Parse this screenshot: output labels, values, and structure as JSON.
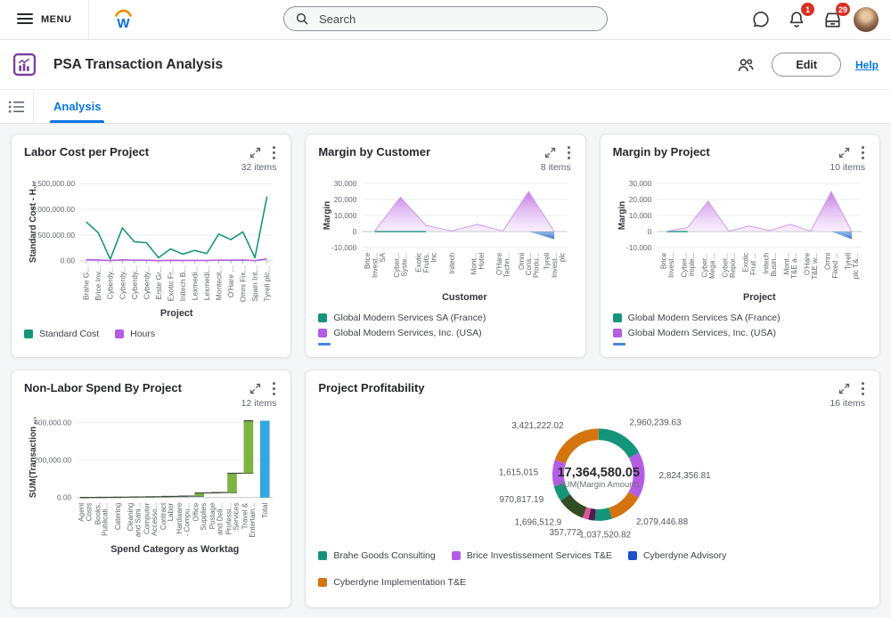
{
  "topbar": {
    "menu_label": "MENU",
    "logo_letter": "W",
    "search_placeholder": "Search",
    "notification_badge": "1",
    "inbox_badge": "29"
  },
  "header": {
    "title": "PSA Transaction Analysis",
    "edit_label": "Edit",
    "help_label": "Help"
  },
  "tabs": {
    "active": "Analysis"
  },
  "colors": {
    "accent_blue": "#0875e1",
    "badge_red": "#d93025",
    "teal": "#149579",
    "purple": "#b55ce5",
    "orange": "#d4740f",
    "dark_green": "#324d25",
    "dark_purple": "#4f1d4e",
    "pink": "#e8509e",
    "legend_blue": "#1c52c9",
    "waterfall_green": "#7cb342",
    "total_blue": "#33a7e0",
    "neg_blue": "#4b86d8"
  },
  "chart_data": [
    {
      "type": "line",
      "title": "Labor Cost per Project",
      "items_label": "32 items",
      "xlabel": "Project",
      "ylabel": "Standard Cost - H...",
      "ylim": [
        0,
        1500000
      ],
      "yticks": [
        {
          "v": 1500000,
          "label": "1,500,000.00"
        },
        {
          "v": 1000000,
          "label": "1,000,000.00"
        },
        {
          "v": 500000,
          "label": "500,000.00"
        },
        {
          "v": 0,
          "label": "0.00"
        }
      ],
      "categories": [
        "Brahe G...",
        "Brice Inv...",
        "Cyberdy...",
        "Cyberdy...",
        "Cyberdy...",
        "Cyberdy...",
        "Erste Gr...",
        "Exotic Fr...",
        "Initech B...",
        "Lexmedi...",
        "Lexmedi...",
        "Montecit...",
        "O'Hare ...",
        "Omni Fix...",
        "Spain Int...",
        "Tyrell plc..."
      ],
      "series": [
        {
          "name": "Standard Cost",
          "color": "#149579",
          "values": [
            755000,
            545000,
            30000,
            640000,
            370000,
            350000,
            60000,
            230000,
            130000,
            200000,
            140000,
            520000,
            410000,
            560000,
            60000,
            1250000
          ]
        },
        {
          "name": "Hours",
          "color": "#b55ce5",
          "values": [
            22000,
            15000,
            3000,
            18000,
            12000,
            10000,
            4000,
            8000,
            6000,
            7000,
            5000,
            14000,
            11000,
            15000,
            4000,
            35000
          ]
        }
      ]
    },
    {
      "type": "area",
      "title": "Margin by Customer",
      "items_label": "8 items",
      "xlabel": "Customer",
      "ylabel": "Margin",
      "ylim": [
        -10000,
        30000
      ],
      "yticks": [
        {
          "v": 30000,
          "label": "30,000"
        },
        {
          "v": 20000,
          "label": "20,000"
        },
        {
          "v": 10000,
          "label": "10,000"
        },
        {
          "v": 0,
          "label": "0"
        },
        {
          "v": -10000,
          "label": "-10,000"
        }
      ],
      "categories": [
        "Brice\nInvest...\nSA",
        "Cyber...\nSyste...",
        "Exotic\nFruits,\nInc",
        "Initech",
        "Mont...\nHotel",
        "O'Hare\nTechn...",
        "Omni\nCons...\nProdu...",
        "Tyrell\nInvest...\nplc"
      ],
      "series": [
        {
          "name": "Global Modern Services SA (France)",
          "color": "#149579",
          "kind": "zero-line",
          "span": 3
        },
        {
          "name": "Global Modern Services, Inc. (USA)",
          "color": "#b55ce5",
          "kind": "area",
          "values": [
            300,
            21500,
            3800,
            300,
            4500,
            300,
            25000,
            0
          ]
        },
        {
          "name": "",
          "color": "#4b86d8",
          "kind": "area-neg",
          "values": [
            0,
            0,
            0,
            0,
            0,
            0,
            0,
            -4800
          ]
        }
      ]
    },
    {
      "type": "area",
      "title": "Margin by Project",
      "items_label": "10 items",
      "xlabel": "Project",
      "ylabel": "Margin",
      "ylim": [
        -10000,
        30000
      ],
      "yticks": [
        {
          "v": 30000,
          "label": "30,000"
        },
        {
          "v": 20000,
          "label": "20,000"
        },
        {
          "v": 10000,
          "label": "10,000"
        },
        {
          "v": 0,
          "label": "0"
        },
        {
          "v": -10000,
          "label": "-10,000"
        }
      ],
      "categories": [
        "Brice\nInvest...",
        "Cyber...\nImple...",
        "Cyber...\nMega ...",
        "Cyber...\nRepor...",
        "Exotic\nFruit ...",
        "Initech\nBusin...",
        "Mont...\nT&E a...",
        "O'Hare\nT&E w...",
        "Omni\nFixed ...",
        "Tyrell\nplc T&..."
      ],
      "series": [
        {
          "name": "Global Modern Services SA (France)",
          "color": "#149579",
          "kind": "zero-line",
          "span": 2
        },
        {
          "name": "Global Modern Services, Inc. (USA)",
          "color": "#b55ce5",
          "kind": "area",
          "values": [
            200,
            2500,
            19000,
            200,
            3500,
            500,
            4500,
            200,
            25000,
            0
          ]
        },
        {
          "name": "",
          "color": "#4b86d8",
          "kind": "area-neg",
          "values": [
            0,
            0,
            0,
            0,
            0,
            0,
            0,
            0,
            0,
            -4800
          ]
        }
      ]
    },
    {
      "type": "waterfall",
      "title": "Non-Labor Spend By Project",
      "items_label": "12 items",
      "xlabel": "Spend Category as Worktag",
      "ylabel": "SUM(Transaction ...",
      "ylim": [
        0,
        430000
      ],
      "yticks": [
        {
          "v": 400000,
          "label": "400,000.00"
        },
        {
          "v": 200000,
          "label": "200,000.00"
        },
        {
          "v": 0,
          "label": "0.00"
        }
      ],
      "categories": [
        "Agent\nCosts",
        "Books,\nPublicati...",
        "Catering",
        "Cleaning\nand Sani...",
        "Computer\nAccesso...",
        "Contract\nLabor",
        "Hardware\n- Compu...",
        "Office\nSupplies",
        "Postage\nand Deli...",
        "Professi...\nServices",
        "Travel &\nEntertain...",
        "Total"
      ],
      "increments": [
        800,
        700,
        900,
        1000,
        1100,
        1500,
        2000,
        17000,
        2000,
        103000,
        280000
      ],
      "total": 410000,
      "bar_color": "#7cb342",
      "total_color": "#33a7e0"
    },
    {
      "type": "donut",
      "title": "Project Profitability",
      "items_label": "16 items",
      "center_value": "17,364,580.05",
      "center_label": "SUM(Margin Amount)",
      "segments": [
        {
          "label": "2,960,239.63",
          "value": 2960239.63,
          "color": "#149579"
        },
        {
          "label": "2,824,356.81",
          "value": 2824356.81,
          "color": "#b55ce5"
        },
        {
          "label": "2,079,446.88",
          "value": 2079446.88,
          "color": "#d4740f"
        },
        {
          "label": "1,037,520.82",
          "value": 1037520.82,
          "color": "#149579"
        },
        {
          "label": "",
          "value": 401676.8,
          "color": "#4f1d4e"
        },
        {
          "label": "357,772",
          "value": 357772,
          "color": "#e8509e"
        },
        {
          "label": "1,696,512.9",
          "value": 1696512.9,
          "color": "#324d25"
        },
        {
          "label": "970,817.19",
          "value": 970817.19,
          "color": "#149579"
        },
        {
          "label": "1,615,015",
          "value": 1615015,
          "color": "#b55ce5"
        },
        {
          "label": "3,421,222.02",
          "value": 3421222.02,
          "color": "#d4740f"
        }
      ],
      "legend": [
        {
          "label": "Brahe Goods Consulting",
          "color": "#149579"
        },
        {
          "label": "Brice Investissement Services T&E",
          "color": "#b55ce5"
        },
        {
          "label": "Cyberdyne Advisory",
          "color": "#1c52c9"
        },
        {
          "label": "Cyberdyne Implementation T&E",
          "color": "#d4740f"
        }
      ]
    }
  ]
}
